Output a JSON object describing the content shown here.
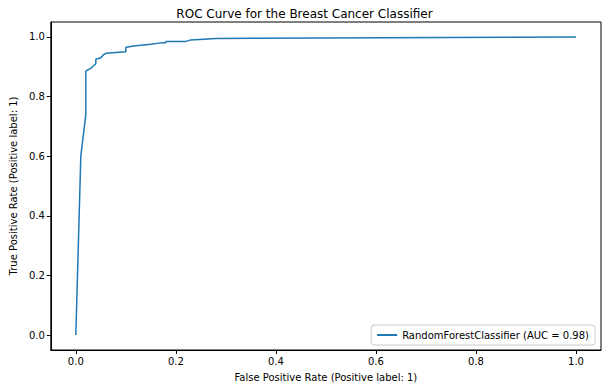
{
  "chart_data": {
    "type": "line",
    "title": "ROC Curve for the Breast Cancer Classifier",
    "x_label": "False Positive Rate (Positive label: 1)",
    "y_label": "True Positive Rate (Positive label: 1)",
    "series": [
      {
        "name": "RandomForestClassifier (AUC = 0.98)",
        "color": "#1f77b4",
        "x": [
          0.0,
          0.005,
          0.01,
          0.02,
          0.02,
          0.03,
          0.04,
          0.04,
          0.05,
          0.055,
          0.06,
          0.1,
          0.1,
          0.12,
          0.15,
          0.17,
          0.18,
          0.18,
          0.22,
          0.23,
          0.28,
          1.0
        ],
        "values": [
          0.0,
          0.3,
          0.6,
          0.74,
          0.885,
          0.895,
          0.91,
          0.925,
          0.93,
          0.94,
          0.945,
          0.95,
          0.965,
          0.97,
          0.975,
          0.98,
          0.98,
          0.985,
          0.985,
          0.99,
          0.995,
          1.0
        ]
      }
    ],
    "xlim": [
      -0.05,
      1.05
    ],
    "ylim": [
      -0.05,
      1.05
    ],
    "xticks": [
      {
        "value": 0,
        "label": "0.0"
      },
      {
        "value": 0.2,
        "label": "0.2"
      },
      {
        "value": 0.4,
        "label": "0.4"
      },
      {
        "value": 0.6,
        "label": "0.6"
      },
      {
        "value": 0.8,
        "label": "0.8"
      },
      {
        "value": 1,
        "label": "1.0"
      }
    ],
    "yticks": [
      {
        "value": 0,
        "label": "0.0"
      },
      {
        "value": 0.2,
        "label": "0.2"
      },
      {
        "value": 0.4,
        "label": "0.4"
      },
      {
        "value": 0.6,
        "label": "0.6"
      },
      {
        "value": 0.8,
        "label": "0.8"
      },
      {
        "value": 1,
        "label": "1.0"
      }
    ],
    "grid": false,
    "legend": "lower right"
  }
}
